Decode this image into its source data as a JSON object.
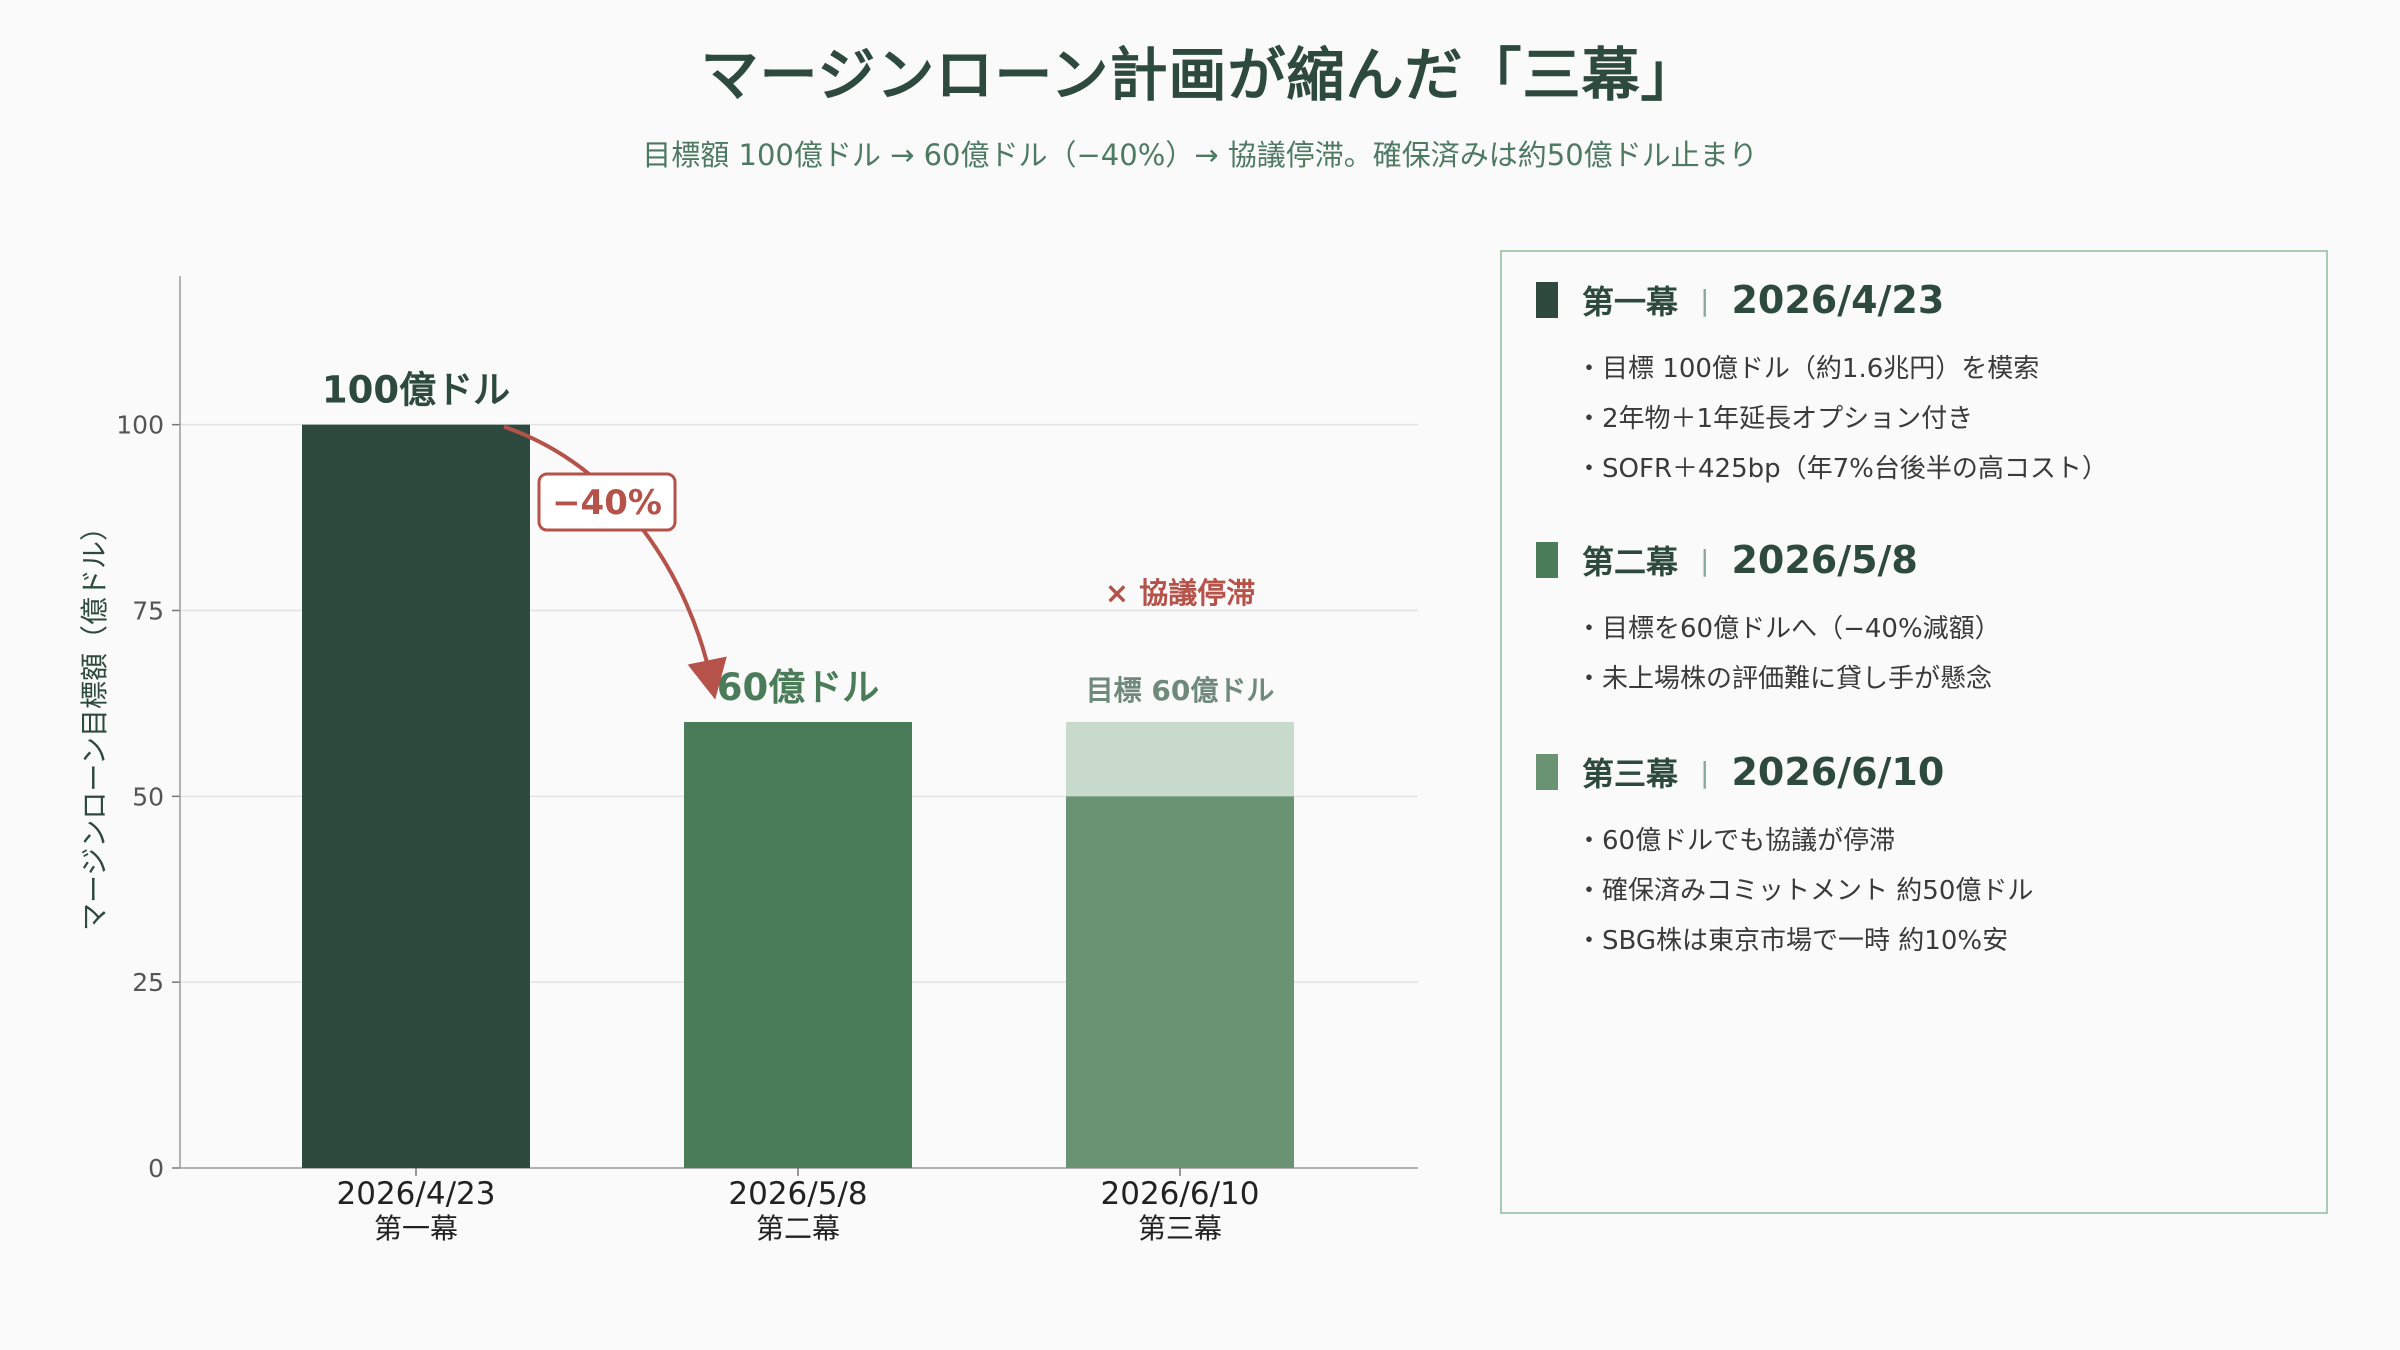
{
  "title": "マージンローン計画が縮んだ「三幕」",
  "subtitle": "目標額 100億ドル → 60億ドル（−40%）→ 協議停滞。確保済みは約50億ドル止まり",
  "colors": {
    "stage1": "#2e4a3e",
    "stage2": "#4a7c59",
    "stage3": "#6a9373",
    "stage3_target": "#c8dacb",
    "accent_red": "#b5534a",
    "grid": "#e3e3e3"
  },
  "chart_data": {
    "type": "bar",
    "ylabel": "マージンローン目標額（億ドル）",
    "ylim": [
      0,
      120
    ],
    "yticks": [
      0,
      25,
      50,
      75,
      100
    ],
    "grid": true,
    "categories": [
      {
        "date": "2026/4/23",
        "stage": "第一幕"
      },
      {
        "date": "2026/5/8",
        "stage": "第二幕"
      },
      {
        "date": "2026/6/10",
        "stage": "第三幕"
      }
    ],
    "values": [
      100,
      60,
      50
    ],
    "target_values": [
      null,
      null,
      60
    ],
    "data_labels": [
      "100億ドル",
      "60億ドル",
      "目標 60億ドル"
    ],
    "annotations": {
      "change_label": "−40%",
      "stalled_label": "× 協議停滞"
    }
  },
  "panel": {
    "stages": [
      {
        "name": "第一幕",
        "sep": "|",
        "date": "2026/4/23",
        "bullets": [
          "目標 100億ドル（約1.6兆円）を模索",
          "2年物＋1年延長オプション付き",
          "SOFR＋425bp（年7%台後半の高コスト）"
        ]
      },
      {
        "name": "第二幕",
        "sep": "|",
        "date": "2026/5/8",
        "bullets": [
          "目標を60億ドルへ（−40%減額）",
          "未上場株の評価難に貸し手が懸念"
        ]
      },
      {
        "name": "第三幕",
        "sep": "|",
        "date": "2026/6/10",
        "bullets": [
          "60億ドルでも協議が停滞",
          "確保済みコミットメント 約50億ドル",
          "SBG株は東京市場で一時 約10%安"
        ]
      }
    ]
  }
}
